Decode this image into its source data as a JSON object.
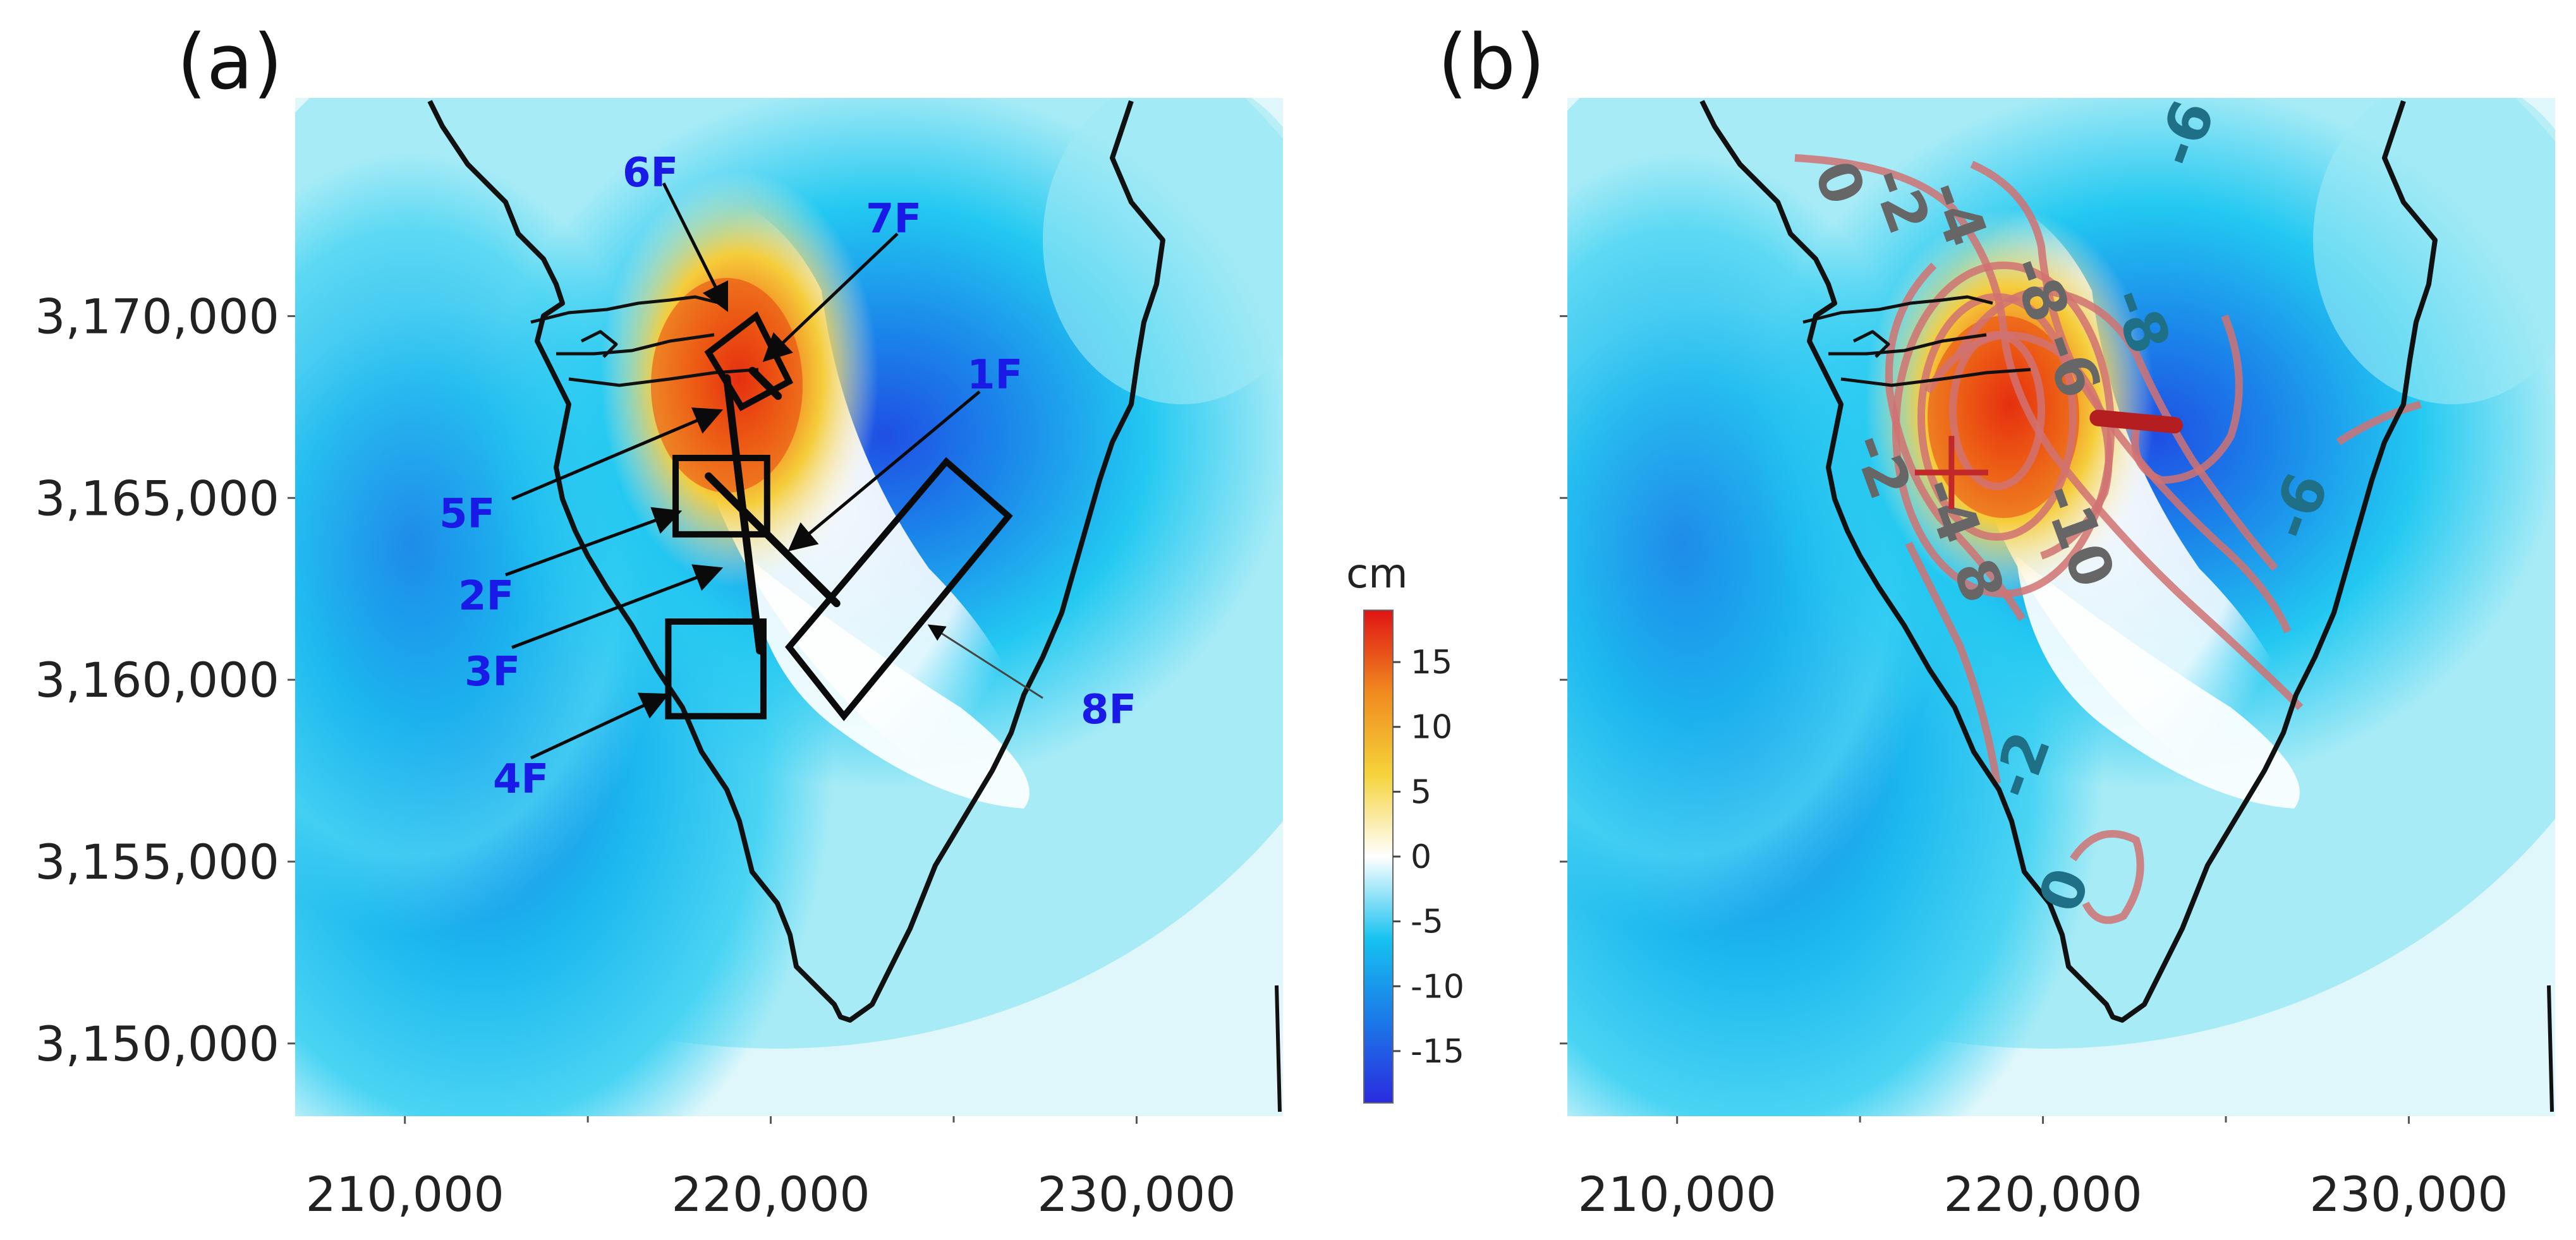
{
  "figure": {
    "panels": [
      "(a)",
      "(b)"
    ]
  },
  "chart_data": [
    {
      "type": "heatmap",
      "panel": "(a)",
      "title": "",
      "x_ticks": [
        210000,
        220000,
        230000
      ],
      "x_tick_labels": [
        "210,000",
        "220,000",
        "230,000"
      ],
      "y_ticks": [
        3170000,
        3165000,
        3160000,
        3155000,
        3150000
      ],
      "y_tick_labels": [
        "3,170,000",
        "3,165,000",
        "3,160,000",
        "3,155,000",
        "3,150,000"
      ],
      "xlim": [
        207000,
        234000
      ],
      "ylim": [
        3148000,
        3176000
      ],
      "displacement_extrema_cm": [
        {
          "x": 219500,
          "y": 3167500,
          "value": 18
        },
        {
          "x": 223500,
          "y": 3167000,
          "value": -18
        },
        {
          "x": 210500,
          "y": 3160000,
          "value": -12
        },
        {
          "x": 213000,
          "y": 3155000,
          "value": -12
        }
      ],
      "faults": [
        {
          "id": "1F",
          "label": "1F",
          "kind": "rectangle",
          "corners": [
            [
              220500,
              3160900
            ],
            [
              222000,
              3159000
            ],
            [
              226500,
              3164500
            ],
            [
              224800,
              3166000
            ]
          ]
        },
        {
          "id": "2F",
          "label": "2F",
          "kind": "rectangle",
          "corners": [
            [
              217400,
              3166100
            ],
            [
              219900,
              3166100
            ],
            [
              219900,
              3164000
            ],
            [
              217400,
              3164000
            ]
          ]
        },
        {
          "id": "3F",
          "label": "3F",
          "kind": "line",
          "points": [
            [
              218300,
              3165600
            ],
            [
              221800,
              3162100
            ]
          ]
        },
        {
          "id": "4F",
          "label": "4F",
          "kind": "rectangle",
          "corners": [
            [
              217200,
              3161600
            ],
            [
              219800,
              3161600
            ],
            [
              219800,
              3159000
            ],
            [
              217200,
              3159000
            ]
          ]
        },
        {
          "id": "5F",
          "label": "5F",
          "kind": "line",
          "points": [
            [
              218800,
              3168300
            ],
            [
              219700,
              3160800
            ]
          ]
        },
        {
          "id": "6F",
          "label": "6F",
          "kind": "rectangle",
          "corners": [
            [
              218300,
              3169000
            ],
            [
              219600,
              3170000
            ],
            [
              220500,
              3168200
            ],
            [
              219200,
              3167500
            ]
          ]
        },
        {
          "id": "7F",
          "label": "7F",
          "kind": "line",
          "points": [
            [
              219500,
              3168500
            ],
            [
              220200,
              3167800
            ]
          ]
        },
        {
          "id": "8F",
          "label": "8F",
          "kind": "annotation"
        }
      ]
    },
    {
      "type": "heatmap",
      "panel": "(b)",
      "title": "",
      "x_ticks": [
        210000,
        220000,
        230000
      ],
      "x_tick_labels": [
        "210,000",
        "220,000",
        "230,000"
      ],
      "xlim": [
        207000,
        234000
      ],
      "ylim": [
        3148000,
        3176000
      ],
      "displacement_extrema_cm": [
        {
          "x": 219300,
          "y": 3167000,
          "value": 18
        },
        {
          "x": 223000,
          "y": 3166800,
          "value": -18
        },
        {
          "x": 210500,
          "y": 3160000,
          "value": -12
        },
        {
          "x": 213000,
          "y": 3155000,
          "value": -12
        }
      ],
      "markers": [
        {
          "kind": "cross",
          "x": 217500,
          "y": 3165700,
          "color": "#c0282a"
        },
        {
          "kind": "segment",
          "points": [
            [
              221500,
              3167200
            ],
            [
              223600,
              3167000
            ]
          ],
          "color": "#b51e20"
        }
      ],
      "contour_labels": [
        "0",
        "-2",
        "-4",
        "-6",
        "-8",
        "-6",
        "-8",
        "-6",
        "-2",
        "-4",
        "8",
        "-10",
        "-2",
        "0"
      ]
    }
  ],
  "colorbar": {
    "unit": "cm",
    "vmin": -19,
    "vmax": 19,
    "tick_values": [
      15,
      10,
      5,
      0,
      -5,
      -10,
      -15
    ],
    "tick_labels": [
      "15",
      "10",
      "5",
      "0",
      "-5",
      "-10",
      "-15"
    ],
    "stops": [
      "#2b2be0",
      "#1b79e8",
      "#16c2f0",
      "#ffffff",
      "#f5d33a",
      "#f08a1e",
      "#e01414"
    ]
  }
}
